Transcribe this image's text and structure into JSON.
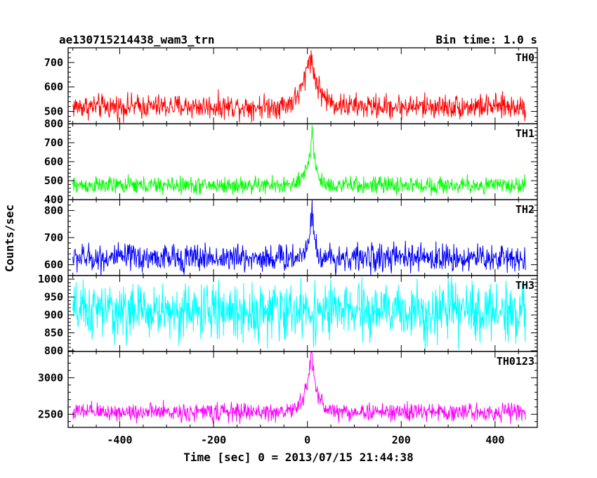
{
  "title_left": "ae130715214438_wam3_trn",
  "title_right": "Bin time: 1.0 s",
  "chart_data": {
    "type": "line",
    "xlabel": "Time [sec] 0 = 2013/07/15 21:44:38",
    "ylabel": "Counts/sec",
    "xlim": [
      -510,
      490
    ],
    "x_ticks": [
      -400,
      -200,
      0,
      200,
      400
    ],
    "x_range": [
      -500,
      465
    ],
    "bin_time_s": 1.0,
    "grid": false,
    "panels": [
      {
        "name": "TH0",
        "color": "#ff0000",
        "ylim": [
          450,
          760
        ],
        "y_ticks": [
          500,
          600,
          700
        ],
        "baseline": 520,
        "noise": 24,
        "peak_height": 225,
        "peak_time": 5,
        "rise_s": 16,
        "decay_s": 18,
        "approx_points": [
          [
            -500,
            520
          ],
          [
            -200,
            520
          ],
          [
            -20,
            585
          ],
          [
            0,
            690
          ],
          [
            5,
            745
          ],
          [
            30,
            600
          ],
          [
            100,
            525
          ],
          [
            465,
            520
          ]
        ]
      },
      {
        "name": "TH1",
        "color": "#00ff00",
        "ylim": [
          400,
          800
        ],
        "y_ticks": [
          400,
          500,
          600,
          700,
          800
        ],
        "baseline": 475,
        "noise": 22,
        "peak_height": 290,
        "peak_time": 10,
        "rise_s": 10,
        "decay_s": 8,
        "approx_points": [
          [
            -500,
            475
          ],
          [
            -100,
            475
          ],
          [
            0,
            570
          ],
          [
            10,
            765
          ],
          [
            25,
            560
          ],
          [
            60,
            480
          ],
          [
            465,
            480
          ]
        ]
      },
      {
        "name": "TH2",
        "color": "#0000ff",
        "ylim": [
          560,
          840
        ],
        "y_ticks": [
          600,
          700,
          800
        ],
        "baseline": 625,
        "noise": 25,
        "peak_height": 200,
        "peak_time": 10,
        "rise_s": 8,
        "decay_s": 5,
        "approx_points": [
          [
            -500,
            625
          ],
          [
            -50,
            630
          ],
          [
            0,
            700
          ],
          [
            10,
            825
          ],
          [
            20,
            650
          ],
          [
            465,
            630
          ]
        ]
      },
      {
        "name": "TH3",
        "color": "#00ffff",
        "ylim": [
          798,
          1010
        ],
        "y_ticks": [
          800,
          850,
          900,
          950,
          1000
        ],
        "baseline": 910,
        "noise": 38,
        "peak_height": 0,
        "peak_time": 0,
        "rise_s": 1,
        "decay_s": 1,
        "approx_points": [
          [
            -500,
            910
          ],
          [
            0,
            915
          ],
          [
            465,
            915
          ]
        ]
      },
      {
        "name": "TH0123",
        "color": "#ff00ff",
        "ylim": [
          2320,
          3360
        ],
        "y_ticks": [
          2500,
          3000
        ],
        "baseline": 2530,
        "noise": 60,
        "peak_height": 820,
        "peak_time": 8,
        "rise_s": 12,
        "decay_s": 12,
        "approx_points": [
          [
            -500,
            2500
          ],
          [
            -100,
            2560
          ],
          [
            0,
            2850
          ],
          [
            8,
            3340
          ],
          [
            30,
            2700
          ],
          [
            120,
            2540
          ],
          [
            465,
            2560
          ]
        ]
      }
    ]
  }
}
